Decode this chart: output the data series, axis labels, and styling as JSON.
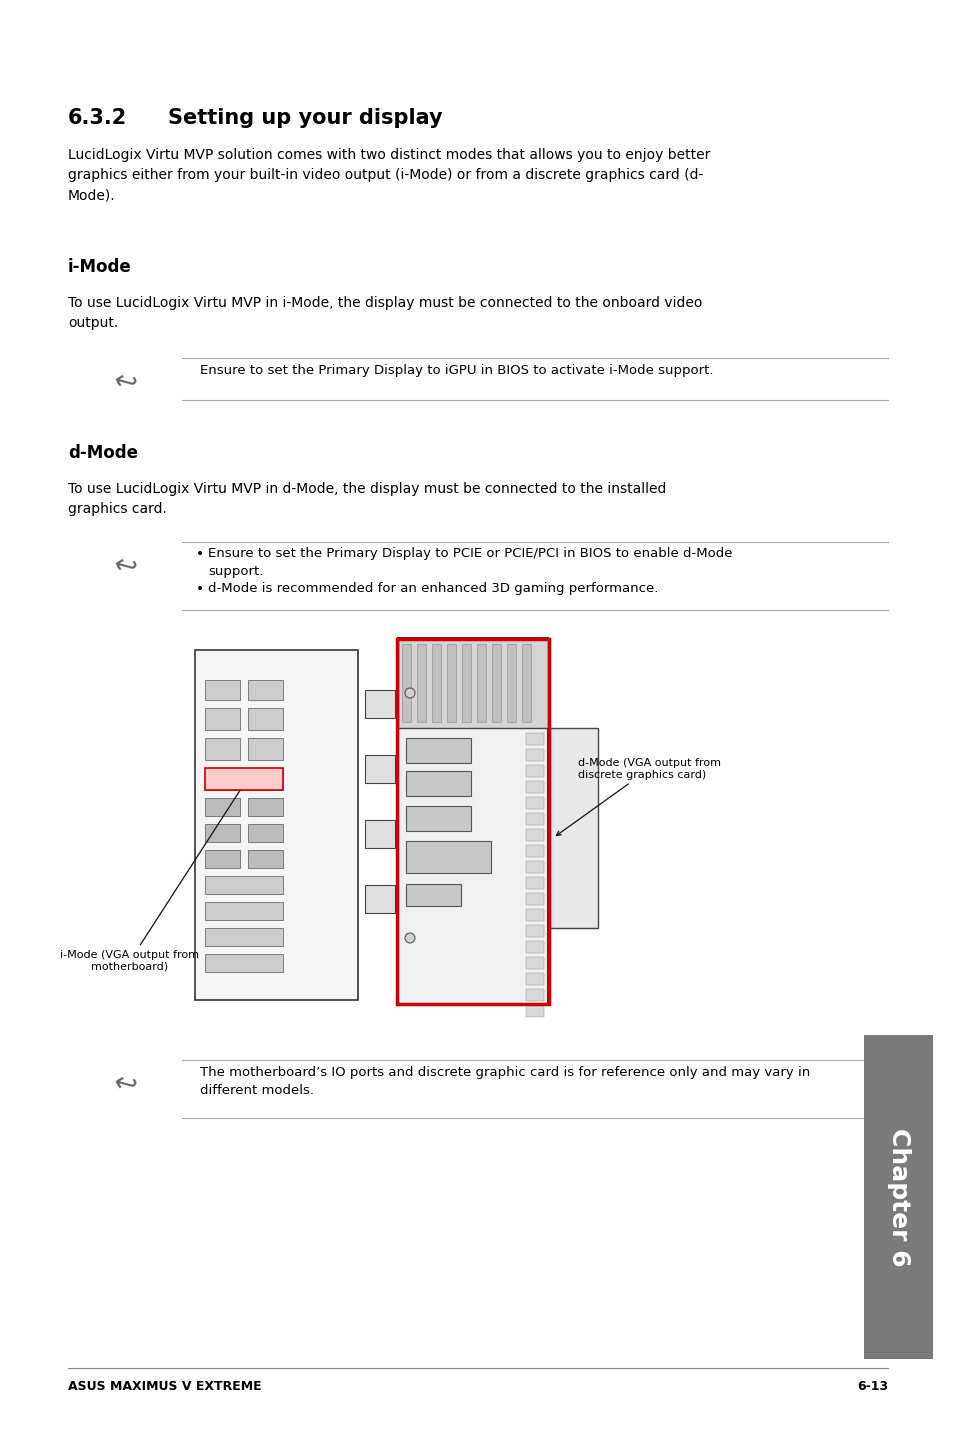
{
  "bg_color": "#ffffff",
  "section_number": "6.3.2",
  "section_title": "Setting up your display",
  "body_text_1": "LucidLogix Virtu MVP solution comes with two distinct modes that allows you to enjoy better\ngraphics either from your built-in video output (i-Mode) or from a discrete graphics card (d-\nMode).",
  "imode_heading": "i-Mode",
  "imode_body": "To use LucidLogix Virtu MVP in i-Mode, the display must be connected to the onboard video\noutput.",
  "note1_text": "Ensure to set the Primary Display to iGPU in BIOS to activate i-Mode support.",
  "dmode_heading": "d-Mode",
  "dmode_body": "To use LucidLogix Virtu MVP in d-Mode, the display must be connected to the installed\ngraphics card.",
  "note2_bullet1": "Ensure to set the Primary Display to PCIE or PCIE/PCI in BIOS to enable d-Mode\nsupport.",
  "note2_bullet2": "d-Mode is recommended for an enhanced 3D gaming performance.",
  "note3_text": "The motherboard’s IO ports and discrete graphic card is for reference only and may vary in\ndifferent models.",
  "label_imode": "i-Mode (VGA output from\nmotherboard)",
  "label_dmode": "d-Mode (VGA output from\ndiscrete graphics card)",
  "footer_left": "ASUS MAXIMUS V EXTREME",
  "footer_right": "6-13",
  "chapter_label": "Chapter 6",
  "body_fontsize": 10,
  "note_fontsize": 9.5,
  "heading_fontsize": 12,
  "title_fontsize": 15
}
